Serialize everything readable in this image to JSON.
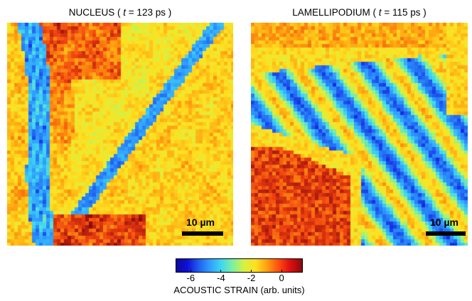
{
  "panels": [
    {
      "title_prefix": "NUCLEUS ( ",
      "title_var": "t",
      "title_suffix": " = 123 ps )",
      "scalebar": "10 µm"
    },
    {
      "title_prefix": "LAMELLIPODIUM ( ",
      "title_var": "t",
      "title_suffix": " = 115 ps )",
      "scalebar": "10 µm"
    }
  ],
  "colorbar": {
    "ticks": [
      "-6",
      "-4",
      "-2",
      "0"
    ],
    "tick_values": [
      -6,
      -4,
      -2,
      0
    ],
    "range": [
      -7,
      1.4
    ],
    "label": "ACOUSTIC STRAIN (arb. units)"
  }
}
